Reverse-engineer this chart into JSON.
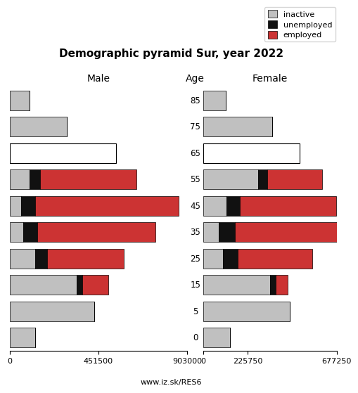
{
  "title": "Demographic pyramid Sur, year 2022",
  "footer": "www.iz.sk/RES6",
  "age_groups": [
    0,
    5,
    15,
    25,
    35,
    45,
    55,
    65,
    75,
    85
  ],
  "male": {
    "inactive": [
      130000,
      430000,
      340000,
      130000,
      70000,
      60000,
      100000,
      540000,
      290000,
      100000
    ],
    "unemployed": [
      0,
      0,
      30000,
      60000,
      70000,
      70000,
      55000,
      0,
      0,
      0
    ],
    "employed": [
      0,
      0,
      130000,
      390000,
      600000,
      730000,
      490000,
      0,
      0,
      0
    ]
  },
  "female": {
    "inactive": [
      135000,
      440000,
      340000,
      100000,
      80000,
      120000,
      280000,
      490000,
      350000,
      115000
    ],
    "unemployed": [
      0,
      0,
      30000,
      75000,
      80000,
      65000,
      45000,
      0,
      0,
      0
    ],
    "employed": [
      0,
      0,
      60000,
      380000,
      530000,
      490000,
      280000,
      0,
      0,
      0
    ]
  },
  "male_65_outline_only": true,
  "female_65_outline_only": true,
  "xlim_male": 903000,
  "xlim_female": 677250,
  "xticks_male": [
    903000,
    451500,
    0
  ],
  "xticks_female": [
    0,
    225750,
    677250
  ],
  "xticklabels_male": [
    "903000",
    "451500",
    "0"
  ],
  "xticklabels_female": [
    "0",
    "225750",
    "677250"
  ],
  "color_inactive": "#c0c0c0",
  "color_unemployed": "#111111",
  "color_employed": "#cc3333",
  "color_outline_only": "#ffffff",
  "bar_height": 0.75,
  "background_color": "#ffffff"
}
